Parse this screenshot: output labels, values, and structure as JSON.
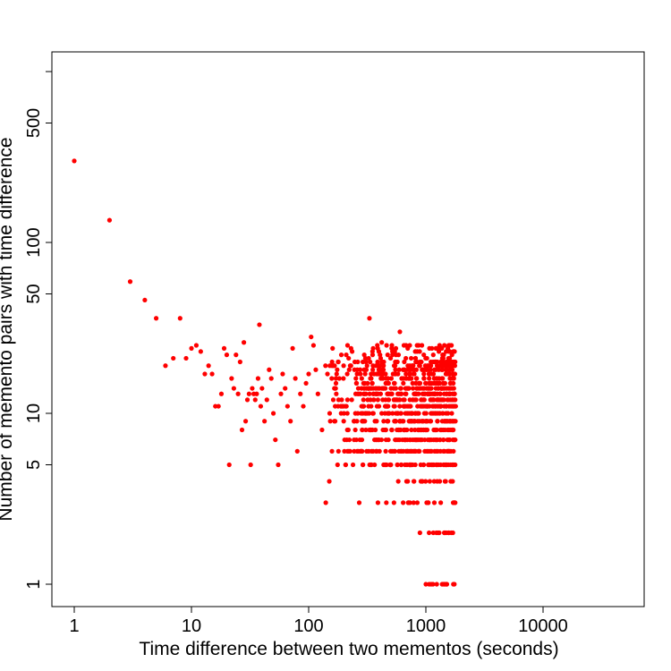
{
  "chart_data": {
    "type": "scatter",
    "title": "",
    "xlabel": "Time difference between two mementos (seconds)",
    "ylabel": "Number of memento pairs with time difference",
    "x_scale": "log",
    "y_scale": "log",
    "xlim": [
      0.7,
      60000
    ],
    "ylim": [
      0.8,
      1000
    ],
    "x_ticks": [
      1,
      10,
      100,
      1000,
      10000
    ],
    "x_tick_labels": [
      "1",
      "10",
      "100",
      "1000",
      "10000"
    ],
    "y_ticks": [
      1,
      5,
      10,
      50,
      100,
      500
    ],
    "y_tick_labels": [
      "1",
      "5",
      "10",
      "50",
      "100",
      "500"
    ],
    "y_minor_ticks": [
      1000
    ],
    "grid": false,
    "legend": "none",
    "point_color": "#ff0000",
    "dense_cloud": {
      "x_range": [
        100,
        1800
      ],
      "y_levels": [
        1,
        2,
        3,
        4,
        5,
        6,
        7,
        8,
        9,
        10,
        11,
        12,
        13,
        14,
        15,
        16,
        17,
        18,
        19,
        20,
        21,
        22,
        23,
        24,
        25
      ],
      "note_values_are_estimates": true
    },
    "series": [
      {
        "x": [
          1,
          2,
          3,
          4,
          5,
          6,
          7,
          8,
          9,
          10,
          11,
          12,
          13,
          14,
          15,
          16,
          17,
          18,
          19,
          20,
          21,
          22,
          23,
          24,
          25,
          26,
          27,
          28,
          29,
          30,
          31,
          32,
          33,
          34,
          35,
          36,
          37,
          38,
          39,
          40,
          42,
          44,
          46,
          48,
          50,
          52,
          55,
          58,
          60,
          63,
          66,
          70,
          73,
          77,
          80,
          85,
          90,
          95,
          100,
          105,
          110,
          115,
          120,
          130,
          140,
          150,
          160,
          170,
          180,
          190,
          200,
          210,
          220,
          230,
          250,
          270,
          290,
          310,
          330,
          360,
          390,
          420,
          460,
          500,
          550,
          600,
          650,
          700,
          760,
          820,
          890,
          960,
          1000,
          1050,
          1100,
          1150,
          1200,
          1300,
          1400,
          1500,
          1600,
          1700,
          1750
        ],
        "y": [
          300,
          135,
          59,
          46,
          36,
          19,
          21,
          36,
          21,
          24,
          25,
          23,
          17,
          19,
          17,
          11,
          11,
          13,
          24,
          22,
          5,
          16,
          14,
          22,
          13,
          20,
          8,
          26,
          9,
          12,
          13,
          5,
          14,
          13,
          12,
          13,
          16,
          33,
          11,
          14,
          9,
          12,
          18,
          16,
          10,
          7,
          5,
          13,
          17,
          14,
          11,
          9,
          24,
          16,
          6,
          13,
          11,
          15,
          17,
          28,
          25,
          18,
          13,
          8,
          3,
          4,
          24,
          14,
          12,
          22,
          10,
          11,
          6,
          24,
          8,
          3,
          20,
          14,
          36,
          12,
          3,
          26,
          3,
          21,
          18,
          30,
          25,
          4,
          19,
          13,
          2,
          12,
          1,
          14,
          12,
          1,
          11,
          2,
          10,
          1,
          13,
          2,
          1
        ]
      }
    ]
  }
}
